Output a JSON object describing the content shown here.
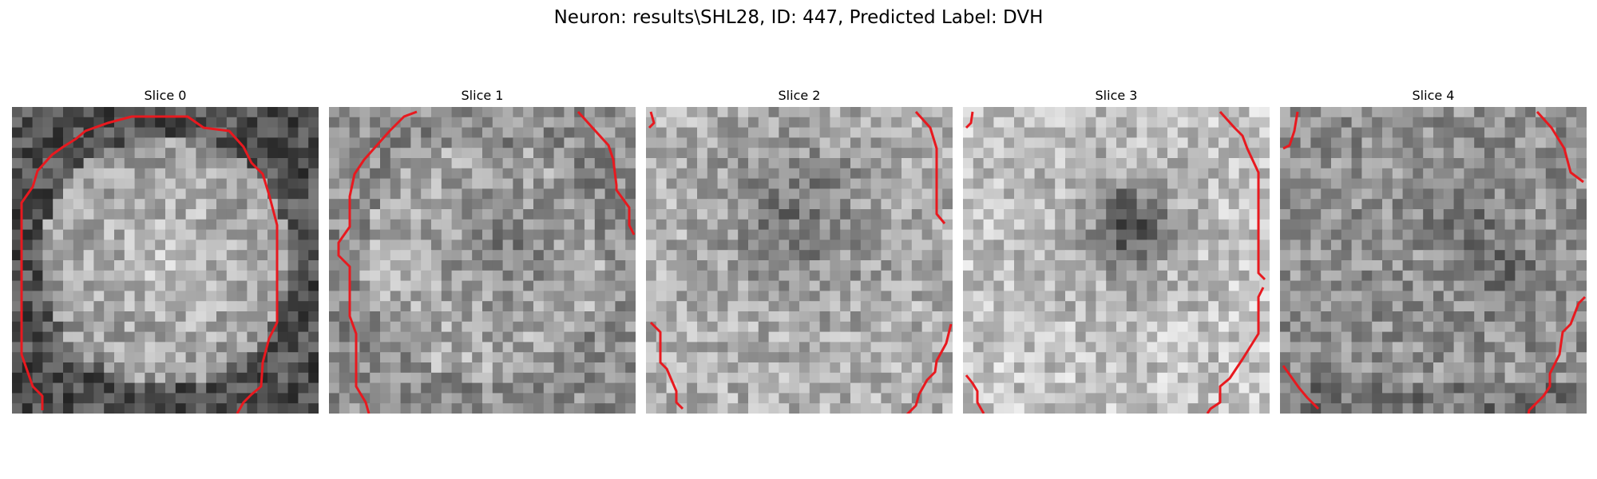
{
  "title": "Neuron: results\\SHL28, ID: 447, Predicted Label: DVH",
  "colors": {
    "contour": "#e8191f",
    "background": "#ffffff"
  },
  "panels": [
    {
      "label": "Slice 0"
    },
    {
      "label": "Slice 1"
    },
    {
      "label": "Slice 2"
    },
    {
      "label": "Slice 3"
    },
    {
      "label": "Slice 4"
    }
  ]
}
